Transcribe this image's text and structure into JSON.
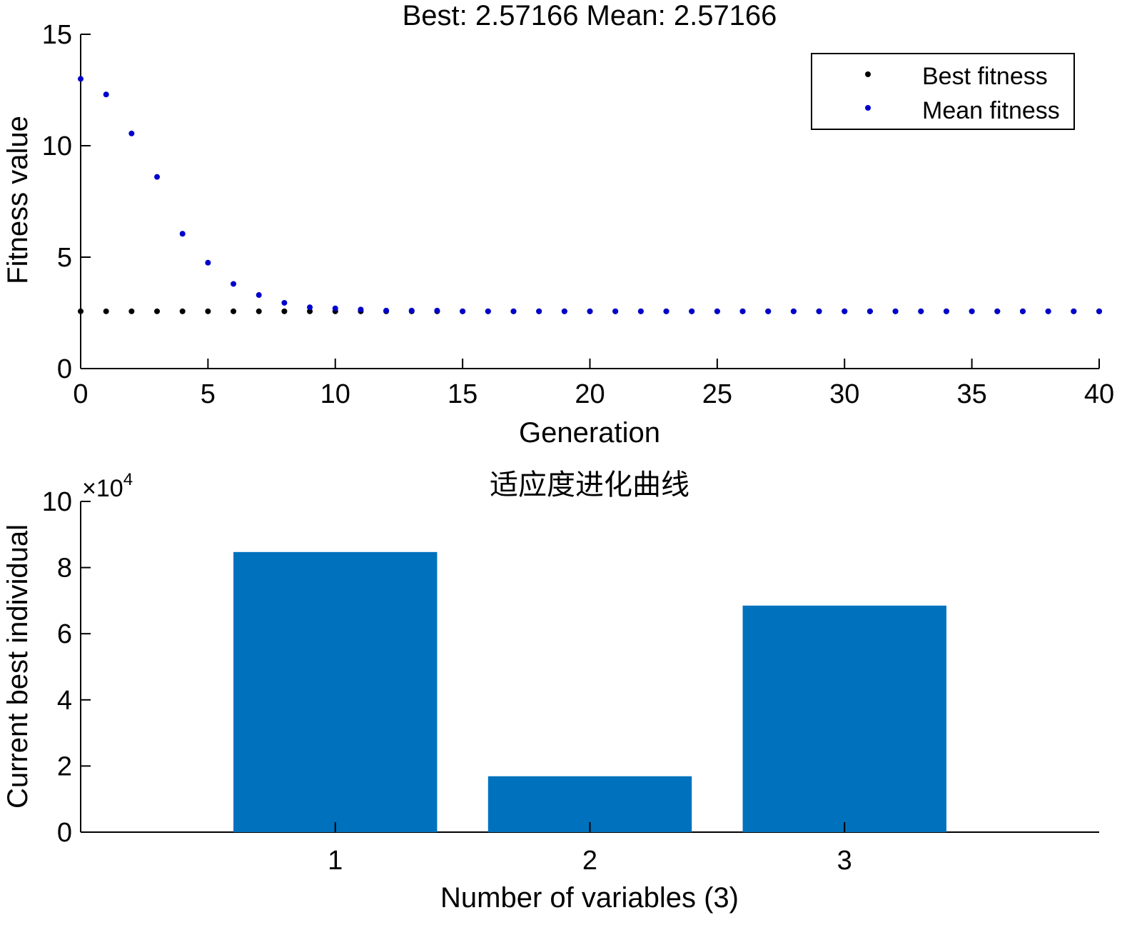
{
  "chart_data": [
    {
      "type": "scatter",
      "title": "Best: 2.57166 Mean: 2.57166",
      "xlabel": "Generation",
      "ylabel": "Fitness value",
      "xlim": [
        0,
        40
      ],
      "ylim": [
        0,
        15
      ],
      "xticks": [
        0,
        5,
        10,
        15,
        20,
        25,
        30,
        35,
        40
      ],
      "yticks": [
        0,
        5,
        10,
        15
      ],
      "legend_position": "top-right",
      "series": [
        {
          "name": "Best fitness",
          "color": "#000000",
          "x": [
            0,
            1,
            2,
            3,
            4,
            5,
            6,
            7,
            8,
            9,
            10,
            11,
            12,
            13,
            14,
            15,
            16,
            17,
            18,
            19,
            20,
            21,
            22,
            23,
            24,
            25,
            26,
            27,
            28,
            29,
            30,
            31,
            32,
            33,
            34,
            35,
            36,
            37,
            38,
            39,
            40
          ],
          "values": [
            2.57,
            2.57,
            2.57,
            2.57,
            2.57,
            2.57,
            2.57,
            2.57,
            2.57,
            2.57,
            2.57,
            2.57,
            2.57,
            2.57,
            2.57,
            2.57,
            2.57,
            2.57,
            2.57,
            2.57,
            2.57,
            2.57,
            2.57,
            2.57,
            2.57,
            2.57,
            2.57,
            2.57,
            2.57,
            2.57,
            2.57,
            2.57,
            2.57,
            2.57,
            2.57,
            2.57,
            2.57,
            2.57,
            2.57,
            2.57,
            2.57
          ]
        },
        {
          "name": "Mean fitness",
          "color": "#0000cc",
          "x": [
            0,
            1,
            2,
            3,
            4,
            5,
            6,
            7,
            8,
            9,
            10,
            11,
            12,
            13,
            14,
            15,
            16,
            17,
            18,
            19,
            20,
            21,
            22,
            23,
            24,
            25,
            26,
            27,
            28,
            29,
            30,
            31,
            32,
            33,
            34,
            35,
            36,
            37,
            38,
            39,
            40
          ],
          "values": [
            13.0,
            12.3,
            10.55,
            8.6,
            6.05,
            4.75,
            3.8,
            3.3,
            2.95,
            2.75,
            2.7,
            2.65,
            2.6,
            2.6,
            2.6,
            2.57,
            2.57,
            2.57,
            2.57,
            2.57,
            2.57,
            2.57,
            2.57,
            2.57,
            2.57,
            2.57,
            2.57,
            2.57,
            2.57,
            2.57,
            2.57,
            2.57,
            2.57,
            2.57,
            2.57,
            2.57,
            2.57,
            2.57,
            2.57,
            2.57,
            2.57
          ]
        }
      ]
    },
    {
      "type": "bar",
      "title": "适应度进化曲线",
      "xlabel": "Number of variables (3)",
      "ylabel": "Current best individual",
      "exponent_label": "×10",
      "exponent_power": "4",
      "categories": [
        "1",
        "2",
        "3"
      ],
      "xlim": [
        0,
        4
      ],
      "ylim": [
        0,
        10
      ],
      "yticks": [
        0,
        2,
        4,
        6,
        8,
        10
      ],
      "scale": 10000,
      "bar_color": "#0072bd",
      "values": [
        84700,
        16900,
        68500
      ]
    }
  ]
}
